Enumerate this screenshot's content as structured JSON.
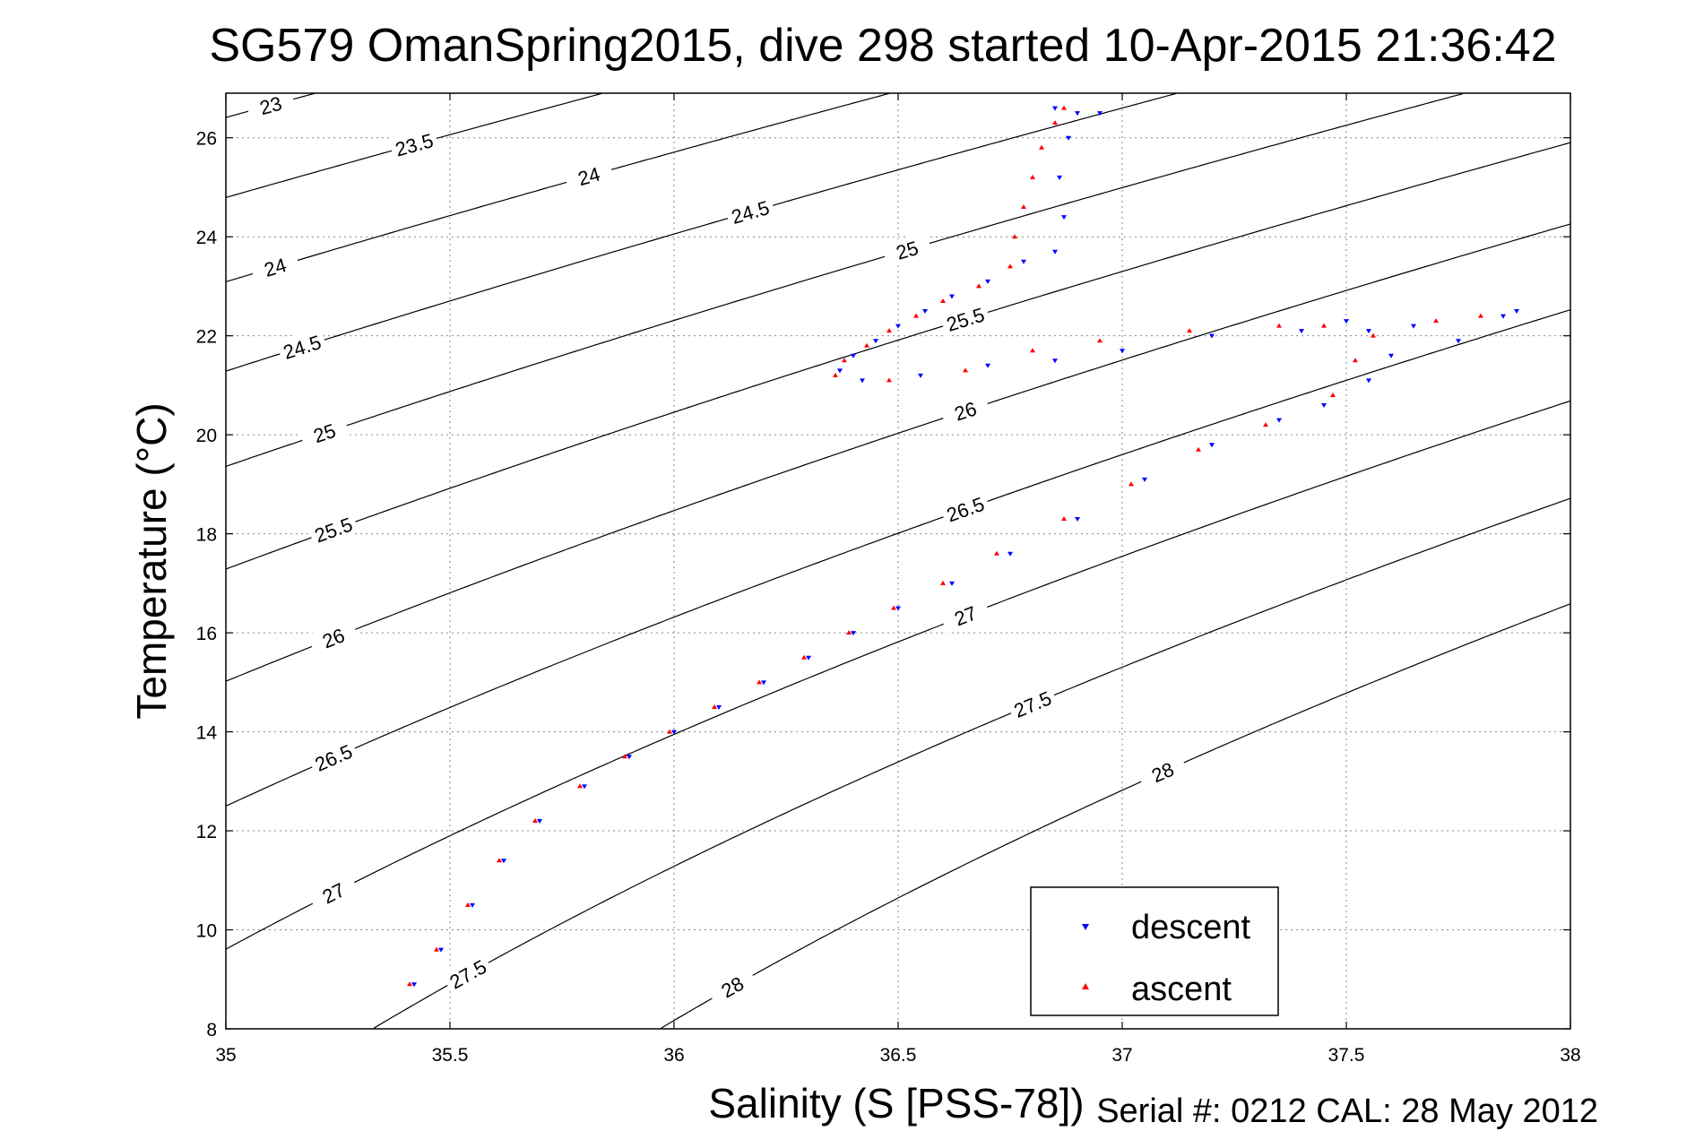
{
  "chart_data": {
    "type": "scatter",
    "title": "SG579 OmanSpring2015, dive 298 started 10-Apr-2015 21:36:42",
    "xlabel": "Salinity (S [PSS-78])",
    "ylabel": "Temperature (°C)",
    "xlim": [
      35,
      38
    ],
    "ylim": [
      8,
      26.9
    ],
    "xticks": [
      "35",
      "35.5",
      "36",
      "36.5",
      "37",
      "37.5",
      "38"
    ],
    "yticks": [
      "8",
      "10",
      "12",
      "14",
      "16",
      "18",
      "20",
      "22",
      "24",
      "26"
    ],
    "grid": true,
    "legend_position": "bottom-right",
    "contour_levels": [
      {
        "label": "23",
        "values": [
          23
        ]
      },
      {
        "label": "23.5",
        "values": [
          23.5
        ]
      },
      {
        "label": "24",
        "values": [
          24
        ]
      },
      {
        "label": "24.5",
        "values": [
          24.5
        ]
      },
      {
        "label": "25",
        "values": [
          25
        ]
      },
      {
        "label": "25.5",
        "values": [
          25.5
        ]
      },
      {
        "label": "26",
        "values": [
          26
        ]
      },
      {
        "label": "26.5",
        "values": [
          26.5
        ]
      },
      {
        "label": "27",
        "values": [
          27
        ]
      },
      {
        "label": "27.5",
        "values": [
          27.5
        ]
      },
      {
        "label": "28",
        "values": [
          28
        ]
      }
    ],
    "series": [
      {
        "name": "descent",
        "color": "#0000ff",
        "points": [
          [
            35.42,
            8.9
          ],
          [
            35.48,
            9.6
          ],
          [
            35.55,
            10.5
          ],
          [
            35.62,
            11.4
          ],
          [
            35.7,
            12.2
          ],
          [
            35.8,
            12.9
          ],
          [
            35.9,
            13.5
          ],
          [
            36.0,
            14.0
          ],
          [
            36.1,
            14.5
          ],
          [
            36.2,
            15.0
          ],
          [
            36.3,
            15.5
          ],
          [
            36.4,
            16.0
          ],
          [
            36.5,
            16.5
          ],
          [
            36.62,
            17.0
          ],
          [
            36.75,
            17.6
          ],
          [
            36.9,
            18.3
          ],
          [
            37.05,
            19.1
          ],
          [
            37.2,
            19.8
          ],
          [
            37.35,
            20.3
          ],
          [
            37.45,
            20.6
          ],
          [
            37.55,
            21.1
          ],
          [
            37.6,
            21.6
          ],
          [
            37.55,
            22.1
          ],
          [
            37.5,
            22.3
          ],
          [
            37.65,
            22.2
          ],
          [
            37.75,
            21.9
          ],
          [
            37.85,
            22.4
          ],
          [
            37.88,
            22.5
          ],
          [
            37.4,
            22.1
          ],
          [
            37.2,
            22.0
          ],
          [
            37.0,
            21.7
          ],
          [
            36.85,
            21.5
          ],
          [
            36.7,
            21.4
          ],
          [
            36.55,
            21.2
          ],
          [
            36.42,
            21.1
          ],
          [
            36.37,
            21.3
          ],
          [
            36.4,
            21.6
          ],
          [
            36.45,
            21.9
          ],
          [
            36.5,
            22.2
          ],
          [
            36.56,
            22.5
          ],
          [
            36.62,
            22.8
          ],
          [
            36.7,
            23.1
          ],
          [
            36.78,
            23.5
          ],
          [
            36.85,
            23.7
          ],
          [
            36.87,
            24.4
          ],
          [
            36.86,
            25.2
          ],
          [
            36.88,
            26.0
          ],
          [
            36.9,
            26.5
          ],
          [
            36.85,
            26.6
          ],
          [
            36.95,
            26.5
          ]
        ]
      },
      {
        "name": "ascent",
        "color": "#ff0000",
        "points": [
          [
            35.41,
            8.9
          ],
          [
            35.47,
            9.6
          ],
          [
            35.54,
            10.5
          ],
          [
            35.61,
            11.4
          ],
          [
            35.69,
            12.2
          ],
          [
            35.79,
            12.9
          ],
          [
            35.89,
            13.5
          ],
          [
            35.99,
            14.0
          ],
          [
            36.09,
            14.5
          ],
          [
            36.19,
            15.0
          ],
          [
            36.29,
            15.5
          ],
          [
            36.39,
            16.0
          ],
          [
            36.49,
            16.5
          ],
          [
            36.6,
            17.0
          ],
          [
            36.72,
            17.6
          ],
          [
            36.87,
            18.3
          ],
          [
            37.02,
            19.0
          ],
          [
            37.17,
            19.7
          ],
          [
            37.32,
            20.2
          ],
          [
            37.47,
            20.8
          ],
          [
            37.52,
            21.5
          ],
          [
            37.56,
            22.0
          ],
          [
            37.45,
            22.2
          ],
          [
            37.7,
            22.3
          ],
          [
            37.8,
            22.4
          ],
          [
            37.35,
            22.2
          ],
          [
            37.15,
            22.1
          ],
          [
            36.95,
            21.9
          ],
          [
            36.8,
            21.7
          ],
          [
            36.65,
            21.3
          ],
          [
            36.48,
            21.1
          ],
          [
            36.36,
            21.2
          ],
          [
            36.38,
            21.5
          ],
          [
            36.43,
            21.8
          ],
          [
            36.48,
            22.1
          ],
          [
            36.54,
            22.4
          ],
          [
            36.6,
            22.7
          ],
          [
            36.68,
            23.0
          ],
          [
            36.75,
            23.4
          ],
          [
            36.76,
            24.0
          ],
          [
            36.78,
            24.6
          ],
          [
            36.8,
            25.2
          ],
          [
            36.82,
            25.8
          ],
          [
            36.85,
            26.3
          ],
          [
            36.87,
            26.6
          ]
        ]
      }
    ]
  },
  "footer": {
    "serial": "Serial #: 0212  CAL: 28 May 2012"
  }
}
